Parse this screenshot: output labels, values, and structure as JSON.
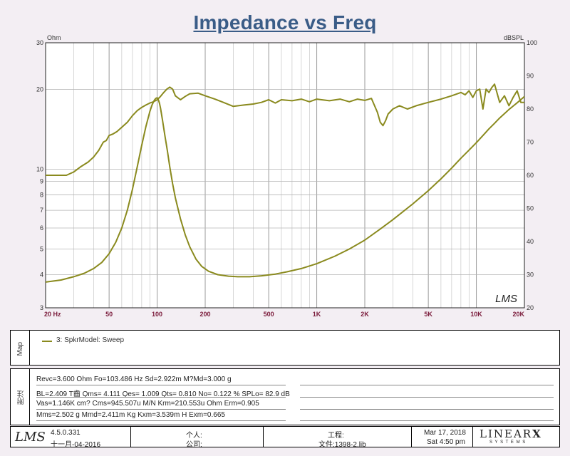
{
  "title": "Impedance vs Freq",
  "chart_data": {
    "type": "line",
    "xscale": "log",
    "xlim": [
      20,
      20000
    ],
    "x_ticks": [
      {
        "value": 20,
        "label": "20  Hz"
      },
      {
        "value": 50,
        "label": "50"
      },
      {
        "value": 100,
        "label": "100"
      },
      {
        "value": 200,
        "label": "200"
      },
      {
        "value": 500,
        "label": "500"
      },
      {
        "value": 1000,
        "label": "1K"
      },
      {
        "value": 2000,
        "label": "2K"
      },
      {
        "value": 5000,
        "label": "5K"
      },
      {
        "value": 10000,
        "label": "10K"
      },
      {
        "value": 20000,
        "label": "20K"
      }
    ],
    "y_left": {
      "unit": "Ohm",
      "scale": "log",
      "lim": [
        3,
        30
      ],
      "ticks": [
        {
          "value": 3,
          "label": "3"
        },
        {
          "value": 4,
          "label": "4"
        },
        {
          "value": 5,
          "label": "5"
        },
        {
          "value": 6,
          "label": "6"
        },
        {
          "value": 7,
          "label": "7"
        },
        {
          "value": 8,
          "label": "8"
        },
        {
          "value": 9,
          "label": "9"
        },
        {
          "value": 10,
          "label": "10"
        },
        {
          "value": 20,
          "label": "20"
        },
        {
          "value": 30,
          "label": "30"
        }
      ]
    },
    "y_right": {
      "unit": "dBSPL",
      "scale": "linear",
      "lim": [
        20,
        100
      ],
      "ticks": [
        {
          "value": 20,
          "label": "20"
        },
        {
          "value": 30,
          "label": "30"
        },
        {
          "value": 40,
          "label": "40"
        },
        {
          "value": 50,
          "label": "50"
        },
        {
          "value": 60,
          "label": "60"
        },
        {
          "value": 70,
          "label": "70"
        },
        {
          "value": 80,
          "label": "80"
        },
        {
          "value": 90,
          "label": "90"
        },
        {
          "value": 100,
          "label": "100"
        }
      ]
    },
    "grid": true,
    "color": "#8a8a1e",
    "series": [
      {
        "axis": "left",
        "x": [
          20,
          25,
          30,
          35,
          40,
          45,
          50,
          55,
          60,
          65,
          70,
          75,
          80,
          85,
          90,
          93,
          96,
          98,
          100,
          102,
          103.5,
          105,
          108,
          112,
          116,
          120,
          125,
          130,
          140,
          150,
          160,
          175,
          190,
          210,
          240,
          280,
          320,
          380,
          450,
          550,
          650,
          800,
          1000,
          1300,
          1600,
          2000,
          2500,
          3000,
          4000,
          5000,
          6000,
          7000,
          8000,
          9000,
          10000,
          11000,
          12000,
          13000,
          14000,
          15000,
          16000,
          17000,
          18000,
          19000,
          20000
        ],
        "y": [
          3.75,
          3.82,
          3.93,
          4.05,
          4.22,
          4.45,
          4.8,
          5.3,
          6.0,
          7.0,
          8.4,
          10.2,
          12.3,
          14.5,
          16.5,
          17.5,
          18.2,
          18.5,
          18.6,
          18.2,
          17.7,
          17.0,
          15.3,
          13.3,
          11.7,
          10.2,
          8.8,
          7.8,
          6.5,
          5.65,
          5.1,
          4.58,
          4.3,
          4.12,
          4.0,
          3.95,
          3.93,
          3.93,
          3.96,
          4.02,
          4.1,
          4.22,
          4.4,
          4.7,
          5.0,
          5.4,
          5.95,
          6.45,
          7.4,
          8.3,
          9.2,
          10.1,
          11.0,
          11.8,
          12.6,
          13.4,
          14.2,
          14.9,
          15.6,
          16.2,
          16.8,
          17.3,
          17.8,
          18.3,
          18.8
        ]
      },
      {
        "axis": "right",
        "x": [
          20,
          25,
          27,
          30,
          33,
          37,
          40,
          43,
          46,
          48,
          50,
          53,
          56,
          60,
          65,
          70,
          75,
          80,
          85,
          90,
          95,
          100,
          105,
          110,
          115,
          120,
          125,
          130,
          140,
          150,
          160,
          180,
          200,
          230,
          260,
          300,
          350,
          400,
          450,
          500,
          550,
          600,
          700,
          800,
          900,
          1000,
          1200,
          1400,
          1600,
          1800,
          2000,
          2200,
          2400,
          2500,
          2600,
          2700,
          2800,
          3000,
          3300,
          3700,
          4200,
          5000,
          6000,
          7000,
          8000,
          8500,
          9000,
          9500,
          10000,
          10500,
          11000,
          11500,
          12000,
          12500,
          13000,
          14000,
          15000,
          16000,
          17000,
          18000,
          19000,
          20000
        ],
        "y": [
          60.0,
          60.0,
          60.0,
          61.0,
          62.5,
          64.0,
          65.5,
          67.5,
          70.0,
          70.5,
          72.0,
          72.5,
          73.2,
          74.5,
          76.0,
          78.0,
          79.5,
          80.5,
          81.2,
          81.8,
          82.2,
          82.8,
          83.8,
          85.0,
          86.0,
          86.6,
          86.0,
          84.0,
          82.8,
          83.8,
          84.6,
          84.8,
          84.0,
          83.0,
          82.0,
          80.8,
          81.2,
          81.5,
          82.0,
          82.8,
          81.8,
          82.8,
          82.5,
          83.0,
          82.2,
          83.0,
          82.5,
          83.0,
          82.2,
          83.0,
          82.6,
          83.2,
          79.0,
          76.0,
          75.0,
          76.5,
          78.5,
          80.0,
          81.0,
          80.0,
          81.0,
          82.0,
          83.0,
          84.0,
          85.0,
          84.3,
          85.5,
          83.5,
          85.5,
          86.0,
          80.0,
          86.0,
          85.0,
          86.5,
          87.5,
          82.0,
          84.0,
          81.0,
          83.5,
          85.5,
          82.0,
          82.0
        ]
      }
    ]
  },
  "legend": {
    "side_label": "Map",
    "entry": "3: SpkrModel: Sweep"
  },
  "params": {
    "side_label": "附注",
    "lines": [
      "Revc=3.600 Ohm  Fo=103.486 Hz  Sd=2.922m M?Md=3.000 g",
      "BL=2.409 T齒  Qms= 4.111  Qes= 1.009  Qts= 0.810  No= 0.122 %  SPLo= 82.9 dB",
      "Vas=1.146K cm?  Cms=945.507u M/N  Krm=210.553u Ohm  Erm=0.905",
      "Mms=2.502 g  Mmd=2.411m Kg  Kxm=3.539m H  Exm=0.665"
    ]
  },
  "footer": {
    "logo": "LMS",
    "version": "4.5.0.331",
    "build_date": "十一月-04-2016",
    "personal_label": "个人:",
    "company_label": "公司:",
    "project_label": "工程:",
    "file_label": "文件:1398-2.lib",
    "date": "Mar 17, 2018",
    "time": "Sat  4:50 pm",
    "brand": "LINEAR",
    "brand_x": "X",
    "brand_sub": "S Y S T E M S"
  },
  "chart_watermark": "LMS"
}
